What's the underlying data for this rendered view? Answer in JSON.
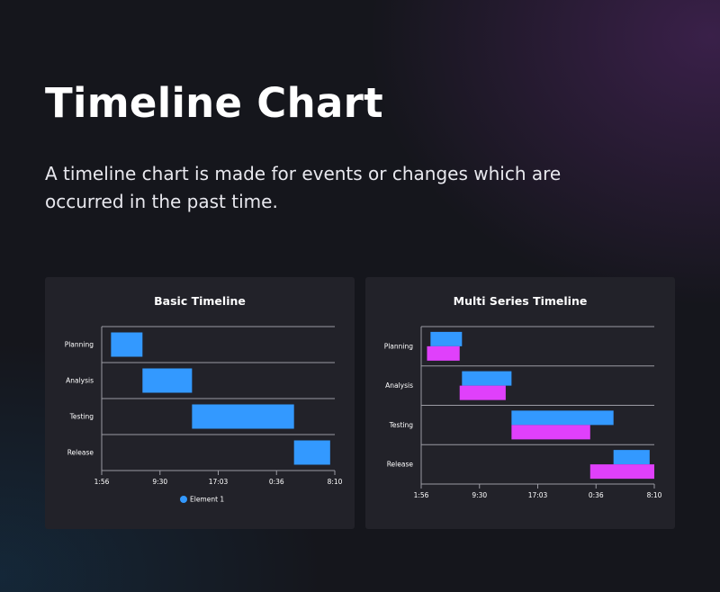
{
  "page": {
    "title": "Timeline Chart",
    "description": "A timeline chart is made for events or changes which are occurred in the past time."
  },
  "chart_data": [
    {
      "type": "bar",
      "orientation": "horizontal-range",
      "title": "Basic Timeline",
      "categories": [
        "Planning",
        "Analysis",
        "Testing",
        "Release"
      ],
      "x_ticks": [
        "1:56",
        "9:30",
        "17:03",
        "0:36",
        "8:10"
      ],
      "xlim": [
        0,
        4
      ],
      "grid": true,
      "legend": "bottom",
      "series": [
        {
          "name": "Element 1",
          "color": "#3399ff",
          "values": [
            [
              0.16,
              0.7
            ],
            [
              0.7,
              1.55
            ],
            [
              1.55,
              3.3
            ],
            [
              3.3,
              3.92
            ]
          ]
        }
      ]
    },
    {
      "type": "bar",
      "orientation": "horizontal-range",
      "title": "Multi Series Timeline",
      "categories": [
        "Planning",
        "Analysis",
        "Testing",
        "Release"
      ],
      "x_ticks": [
        "1:56",
        "9:30",
        "17:03",
        "0:36",
        "8:10"
      ],
      "xlim": [
        0,
        4
      ],
      "grid": true,
      "legend": "none",
      "series": [
        {
          "color": "#3399ff",
          "values": [
            [
              0.16,
              0.7
            ],
            [
              0.7,
              1.55
            ],
            [
              1.55,
              3.3
            ],
            [
              3.3,
              3.92
            ]
          ]
        },
        {
          "color": "#e040fb",
          "values": [
            [
              0.1,
              0.66
            ],
            [
              0.66,
              1.45
            ],
            [
              1.55,
              2.9
            ],
            [
              2.9,
              4.0
            ]
          ]
        }
      ]
    }
  ]
}
